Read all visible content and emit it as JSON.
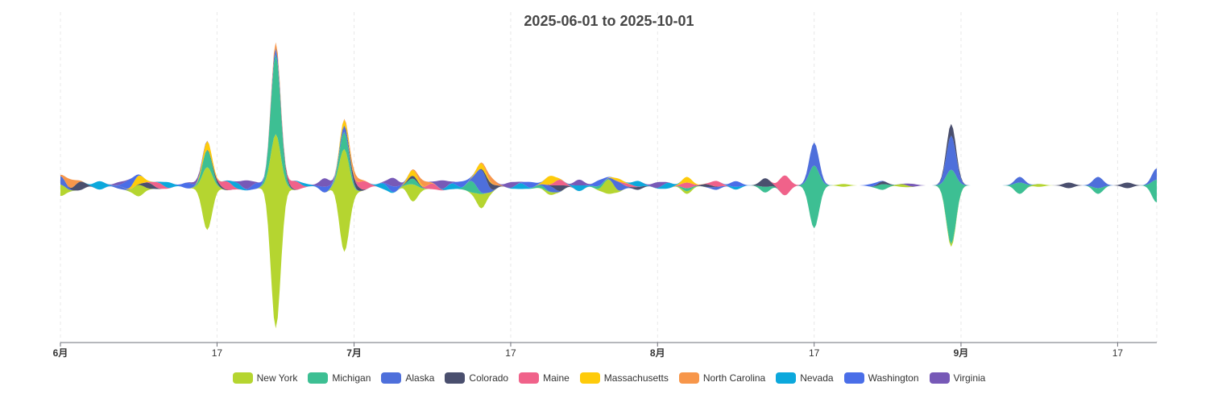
{
  "chart_data": {
    "type": "themeRiver",
    "title": "2025-06-01 to 2025-10-01",
    "x_ticks": [
      {
        "day": 0,
        "label": "6月",
        "major": true
      },
      {
        "day": 16,
        "label": "17",
        "major": false
      },
      {
        "day": 30,
        "label": "7月",
        "major": true
      },
      {
        "day": 46,
        "label": "17",
        "major": false
      },
      {
        "day": 61,
        "label": "8月",
        "major": true
      },
      {
        "day": 77,
        "label": "17",
        "major": false
      },
      {
        "day": 92,
        "label": "9月",
        "major": true
      },
      {
        "day": 108,
        "label": "17",
        "major": false
      }
    ],
    "x_range_days": [
      0,
      112
    ],
    "y_domain": [
      -55,
      55
    ],
    "series": [
      {
        "name": "New York",
        "color": "#b5d530",
        "events": [
          [
            0,
            4
          ],
          [
            8,
            4
          ],
          [
            15,
            22
          ],
          [
            22,
            68
          ],
          [
            29,
            36
          ],
          [
            36,
            6
          ],
          [
            43,
            5
          ],
          [
            50,
            1
          ],
          [
            56,
            5
          ],
          [
            64,
            1
          ],
          [
            80,
            1
          ],
          [
            86,
            1
          ],
          [
            91,
            1
          ],
          [
            100,
            1
          ]
        ]
      },
      {
        "name": "Michigan",
        "color": "#3dbf93",
        "events": [
          [
            15,
            6
          ],
          [
            22,
            28
          ],
          [
            29,
            6
          ],
          [
            36,
            2
          ],
          [
            42,
            4
          ],
          [
            49,
            1
          ],
          [
            55,
            1
          ],
          [
            64,
            1
          ],
          [
            72,
            2
          ],
          [
            77,
            22
          ],
          [
            84,
            2
          ],
          [
            91,
            26
          ],
          [
            98,
            4
          ],
          [
            106,
            2
          ],
          [
            112,
            8
          ]
        ]
      },
      {
        "name": "Alaska",
        "color": "#4e6fdb",
        "events": [
          [
            0,
            3
          ],
          [
            6,
            1
          ],
          [
            22,
            2
          ],
          [
            29,
            2
          ],
          [
            43,
            8
          ],
          [
            50,
            2
          ],
          [
            57,
            3
          ],
          [
            67,
            1
          ],
          [
            77,
            8
          ],
          [
            91,
            12
          ],
          [
            98,
            2
          ],
          [
            106,
            4
          ],
          [
            112,
            4
          ]
        ]
      },
      {
        "name": "Colorado",
        "color": "#4a4f6e",
        "events": [
          [
            2,
            3
          ],
          [
            9,
            2
          ],
          [
            16,
            1
          ],
          [
            23,
            1
          ],
          [
            30,
            2
          ],
          [
            36,
            1
          ],
          [
            44,
            2
          ],
          [
            51,
            2
          ],
          [
            59,
            1
          ],
          [
            66,
            1
          ],
          [
            72,
            3
          ],
          [
            84,
            1
          ],
          [
            91,
            4
          ],
          [
            103,
            2
          ],
          [
            109,
            2
          ]
        ]
      },
      {
        "name": "Maine",
        "color": "#f0628a",
        "events": [
          [
            10,
            2
          ],
          [
            17,
            3
          ],
          [
            24,
            3
          ],
          [
            31,
            3
          ],
          [
            38,
            2
          ],
          [
            51,
            2
          ],
          [
            58,
            1
          ],
          [
            64,
            2
          ],
          [
            67,
            2
          ],
          [
            74,
            7
          ]
        ]
      },
      {
        "name": "Massachusetts",
        "color": "#fecb0b",
        "events": [
          [
            8,
            3
          ],
          [
            15,
            3
          ],
          [
            29,
            2
          ],
          [
            36,
            2
          ],
          [
            43,
            2
          ],
          [
            50,
            3
          ],
          [
            57,
            1
          ],
          [
            64,
            2
          ]
        ]
      },
      {
        "name": "North Carolina",
        "color": "#f7964a",
        "events": [
          [
            1,
            3
          ],
          [
            22,
            2
          ],
          [
            30,
            2
          ],
          [
            37,
            2
          ],
          [
            44,
            2
          ]
        ]
      },
      {
        "name": "Nevada",
        "color": "#0ca8dc",
        "events": [
          [
            4,
            3
          ],
          [
            11,
            2
          ],
          [
            18,
            2
          ],
          [
            25,
            1
          ],
          [
            33,
            2
          ],
          [
            40,
            2
          ],
          [
            47,
            2
          ],
          [
            53,
            2
          ],
          [
            59,
            2
          ],
          [
            62,
            2
          ],
          [
            69,
            1
          ]
        ]
      },
      {
        "name": "Washington",
        "color": "#4a6ee8",
        "events": [
          [
            7,
            3
          ],
          [
            13,
            2
          ],
          [
            20,
            2
          ],
          [
            27,
            2
          ],
          [
            34,
            2
          ],
          [
            41,
            2
          ],
          [
            48,
            2
          ],
          [
            55,
            2
          ],
          [
            69,
            2
          ],
          [
            83,
            1
          ]
        ]
      },
      {
        "name": "Virginia",
        "color": "#7759b7",
        "events": [
          [
            6,
            1
          ],
          [
            14,
            1
          ],
          [
            19,
            3
          ],
          [
            27,
            3
          ],
          [
            34,
            3
          ],
          [
            39,
            3
          ],
          [
            46,
            2
          ],
          [
            53,
            2
          ],
          [
            61,
            2
          ],
          [
            87,
            1
          ]
        ]
      }
    ]
  }
}
